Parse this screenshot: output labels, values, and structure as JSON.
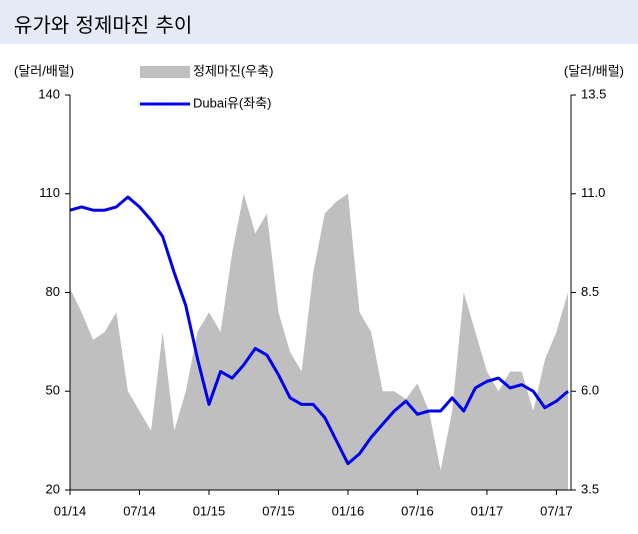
{
  "chart_data": {
    "type": "line",
    "title": "유가와 정제마진 추이",
    "y_label": "(달러/배럴)",
    "y2_label": "(달러/배럴)",
    "categories": [
      "01/14",
      null,
      null,
      null,
      null,
      null,
      "07/14",
      null,
      null,
      null,
      null,
      null,
      "01/15",
      null,
      null,
      null,
      null,
      null,
      "07/15",
      null,
      null,
      null,
      null,
      null,
      "01/16",
      null,
      null,
      null,
      null,
      null,
      "07/16",
      null,
      null,
      null,
      null,
      null,
      "01/17",
      null,
      null,
      null,
      null,
      null,
      "07/17",
      null
    ],
    "series": [
      {
        "name": "정제마진(우축)",
        "color": "#bfbfbf",
        "type": "area",
        "axis": "y2",
        "values": [
          8.6,
          8.0,
          7.3,
          7.5,
          8.0,
          6.0,
          5.5,
          5.0,
          7.5,
          5.0,
          6.0,
          7.5,
          8.0,
          7.5,
          9.5,
          11.0,
          10.0,
          10.5,
          8.0,
          7.0,
          6.5,
          9.0,
          10.5,
          10.8,
          11.0,
          8.0,
          7.5,
          6.0,
          6.0,
          5.8,
          6.2,
          5.5,
          4.0,
          5.5,
          8.5,
          7.5,
          6.5,
          6.0,
          6.5,
          6.5,
          5.5,
          6.8,
          7.5,
          8.5
        ]
      },
      {
        "name": "Dubai유(좌축)",
        "color": "#0000ee",
        "type": "line",
        "axis": "y",
        "values": [
          105,
          106,
          105,
          105,
          106,
          109,
          106,
          102,
          97,
          86,
          76,
          60,
          46,
          56,
          54,
          58,
          63,
          61,
          55,
          48,
          46,
          46,
          42,
          35,
          28,
          31,
          36,
          40,
          44,
          47,
          43,
          44,
          44,
          48,
          44,
          51,
          53,
          54,
          51,
          52,
          50,
          45,
          47,
          50
        ]
      }
    ],
    "ylim": [
      20,
      140
    ],
    "yticks": [
      20,
      50,
      80,
      110,
      140
    ],
    "y2lim": [
      3.5,
      13.5
    ],
    "y2ticks": [
      3.5,
      {
        "value": 6,
        "label": "6.0"
      },
      8.5,
      {
        "value": 11,
        "label": "11.0"
      },
      13.5
    ]
  }
}
